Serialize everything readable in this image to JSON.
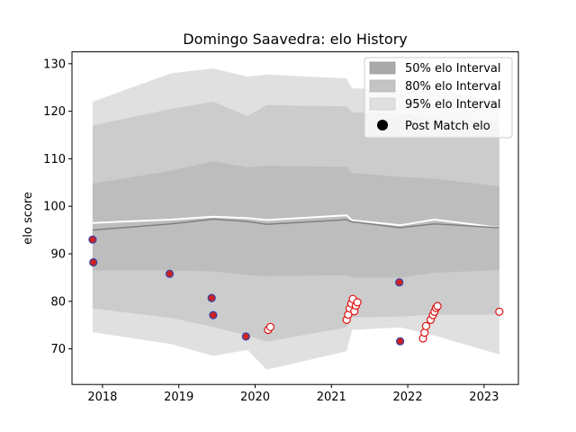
{
  "chart_data": {
    "type": "line",
    "title": "Domingo Saavedra: elo History",
    "xlabel": "",
    "ylabel": "elo score",
    "xlim": [
      2017.6,
      2023.45
    ],
    "ylim": [
      62.5,
      132.5
    ],
    "x_ticks": [
      2018,
      2019,
      2020,
      2021,
      2022,
      2023
    ],
    "x_tick_labels": [
      "2018",
      "2019",
      "2020",
      "2021",
      "2022",
      "2023"
    ],
    "y_ticks": [
      70,
      80,
      90,
      100,
      110,
      120,
      130
    ],
    "y_tick_labels": [
      "70",
      "80",
      "90",
      "100",
      "110",
      "120",
      "130"
    ],
    "grid": false,
    "legend_position": "top-right",
    "legend": [
      {
        "label": "50% elo Interval",
        "kind": "patch",
        "color": "#aaaaaa"
      },
      {
        "label": "80% elo Interval",
        "kind": "patch",
        "color": "#c4c4c4"
      },
      {
        "label": "95% elo Interval",
        "kind": "patch",
        "color": "#e0e0e0"
      },
      {
        "label": "Post Match elo",
        "kind": "marker",
        "color": "#000000"
      }
    ],
    "bands": {
      "x": [
        2017.87,
        2018.9,
        2019.45,
        2019.9,
        2020.15,
        2021.2,
        2021.27,
        2021.3,
        2021.9,
        2022.35,
        2023.2
      ],
      "p95_hi": [
        122.0,
        128.0,
        129.0,
        127.3,
        127.7,
        126.9,
        124.8,
        124.8,
        124.5,
        124.2,
        122.3
      ],
      "p80_hi": [
        117.0,
        120.5,
        122.0,
        119.0,
        121.3,
        121.0,
        119.8,
        119.8,
        119.5,
        118.6,
        117.8
      ],
      "p50_hi": [
        104.8,
        107.5,
        109.5,
        108.2,
        108.5,
        108.3,
        107.0,
        107.0,
        106.2,
        105.8,
        104.2
      ],
      "p50_lo": [
        86.5,
        86.5,
        86.3,
        85.5,
        85.3,
        85.5,
        85.0,
        85.0,
        85.0,
        86.0,
        86.6
      ],
      "p80_lo": [
        78.5,
        76.5,
        74.6,
        72.8,
        71.5,
        74.5,
        76.6,
        76.6,
        76.8,
        77.2,
        77.2
      ],
      "p95_lo": [
        73.5,
        71.0,
        68.5,
        69.8,
        65.6,
        69.5,
        74.0,
        74.0,
        74.5,
        72.8,
        68.8
      ]
    },
    "series": [
      {
        "name": "",
        "style": "mean-line",
        "x": [
          2017.87,
          2018.9,
          2019.45,
          2019.9,
          2020.15,
          2021.2,
          2021.27,
          2021.3,
          2021.9,
          2022.35,
          2023.2
        ],
        "values": [
          96.5,
          97.2,
          97.8,
          97.5,
          97.1,
          98.1,
          97.0,
          97.0,
          96.0,
          97.2,
          95.5
        ]
      },
      {
        "name": "",
        "style": "median-line",
        "x": [
          2017.87,
          2018.9,
          2019.45,
          2019.9,
          2020.15,
          2021.2,
          2021.27,
          2021.3,
          2021.9,
          2022.35,
          2023.2
        ],
        "values": [
          95.0,
          96.3,
          97.3,
          96.8,
          96.2,
          97.2,
          96.7,
          96.7,
          95.5,
          96.3,
          95.5
        ]
      }
    ],
    "points": {
      "filled": {
        "x": [
          2017.87,
          2017.88,
          2018.88,
          2019.43,
          2019.45,
          2019.88,
          2021.89,
          2021.9
        ],
        "values": [
          93.0,
          88.2,
          85.8,
          80.7,
          77.1,
          72.6,
          84.0,
          71.6
        ]
      },
      "open": {
        "x": [
          2020.17,
          2020.2,
          2021.2,
          2021.22,
          2021.24,
          2021.26,
          2021.28,
          2021.3,
          2021.32,
          2021.34,
          2022.2,
          2022.22,
          2022.24,
          2022.3,
          2022.33,
          2022.35,
          2022.37,
          2022.39,
          2023.2
        ],
        "values": [
          74.0,
          74.6,
          76.1,
          77.2,
          78.5,
          79.5,
          80.5,
          77.9,
          79.1,
          79.8,
          72.2,
          73.4,
          74.8,
          76.1,
          77.1,
          77.8,
          78.6,
          79.0,
          77.8
        ]
      }
    }
  }
}
